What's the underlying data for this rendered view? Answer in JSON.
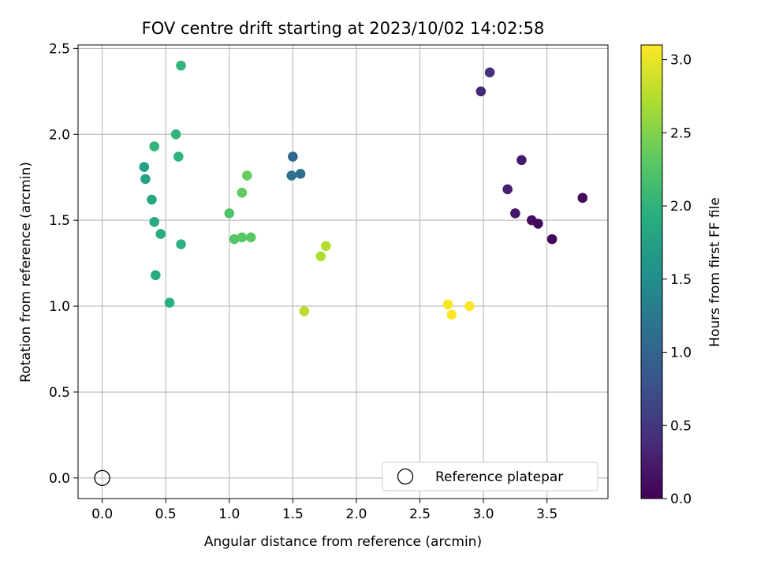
{
  "chart_data": {
    "type": "scatter",
    "title": "FOV centre drift starting at 2023/10/02 14:02:58",
    "xlabel": "Angular distance from reference (arcmin)",
    "ylabel": "Rotation from reference (arcmin)",
    "xlim": [
      -0.19,
      3.98
    ],
    "ylim": [
      -0.12,
      2.52
    ],
    "x_ticks": [
      0.0,
      0.5,
      1.0,
      1.5,
      2.0,
      2.5,
      3.0,
      3.5
    ],
    "x_tick_labels": [
      "0.0",
      "0.5",
      "1.0",
      "1.5",
      "2.0",
      "2.5",
      "3.0",
      "3.5"
    ],
    "y_ticks": [
      0.0,
      0.5,
      1.0,
      1.5,
      2.0,
      2.5
    ],
    "y_tick_labels": [
      "0.0",
      "0.5",
      "1.0",
      "1.5",
      "2.0",
      "2.5"
    ],
    "grid": true,
    "colormap": "viridis",
    "colorbar": {
      "label": "Hours from first FF file",
      "min": 0.0,
      "max": 3.1,
      "ticks": [
        0.0,
        0.5,
        1.0,
        1.5,
        2.0,
        2.5,
        3.0
      ],
      "tick_labels": [
        "0.0",
        "0.5",
        "1.0",
        "1.5",
        "2.0",
        "2.5",
        "3.0"
      ]
    },
    "legend": {
      "placement": "lower-right",
      "entries": [
        "Reference platepar"
      ]
    },
    "reference_point": {
      "x": 0.0,
      "y": 0.0,
      "label": "Reference platepar"
    },
    "points": [
      {
        "x": 3.54,
        "y": 1.39,
        "c": 0.02
      },
      {
        "x": 3.43,
        "y": 1.48,
        "c": 0.05
      },
      {
        "x": 3.78,
        "y": 1.63,
        "c": 0.08
      },
      {
        "x": 3.38,
        "y": 1.5,
        "c": 0.12
      },
      {
        "x": 3.25,
        "y": 1.54,
        "c": 0.18
      },
      {
        "x": 3.3,
        "y": 1.85,
        "c": 0.22
      },
      {
        "x": 3.19,
        "y": 1.68,
        "c": 0.28
      },
      {
        "x": 2.98,
        "y": 2.25,
        "c": 0.35
      },
      {
        "x": 3.05,
        "y": 2.36,
        "c": 0.42
      },
      {
        "x": 1.5,
        "y": 1.87,
        "c": 1.05
      },
      {
        "x": 1.56,
        "y": 1.77,
        "c": 1.1
      },
      {
        "x": 1.49,
        "y": 1.76,
        "c": 1.15
      },
      {
        "x": 0.33,
        "y": 1.81,
        "c": 1.78
      },
      {
        "x": 0.34,
        "y": 1.74,
        "c": 1.8
      },
      {
        "x": 0.39,
        "y": 1.62,
        "c": 1.85
      },
      {
        "x": 0.41,
        "y": 1.49,
        "c": 1.88
      },
      {
        "x": 0.46,
        "y": 1.42,
        "c": 1.9
      },
      {
        "x": 0.42,
        "y": 1.18,
        "c": 1.92
      },
      {
        "x": 0.53,
        "y": 1.02,
        "c": 1.95
      },
      {
        "x": 0.62,
        "y": 1.36,
        "c": 1.97
      },
      {
        "x": 0.6,
        "y": 1.87,
        "c": 1.99
      },
      {
        "x": 0.58,
        "y": 2.0,
        "c": 2.01
      },
      {
        "x": 0.41,
        "y": 1.93,
        "c": 2.02
      },
      {
        "x": 0.62,
        "y": 2.4,
        "c": 2.03
      },
      {
        "x": 1.0,
        "y": 1.54,
        "c": 2.22
      },
      {
        "x": 1.04,
        "y": 1.39,
        "c": 2.25
      },
      {
        "x": 1.1,
        "y": 1.4,
        "c": 2.28
      },
      {
        "x": 1.17,
        "y": 1.4,
        "c": 2.3
      },
      {
        "x": 1.1,
        "y": 1.66,
        "c": 2.33
      },
      {
        "x": 1.14,
        "y": 1.76,
        "c": 2.36
      },
      {
        "x": 1.72,
        "y": 1.29,
        "c": 2.72
      },
      {
        "x": 1.76,
        "y": 1.35,
        "c": 2.75
      },
      {
        "x": 1.59,
        "y": 0.97,
        "c": 2.78
      },
      {
        "x": 2.72,
        "y": 1.01,
        "c": 3.06
      },
      {
        "x": 2.89,
        "y": 1.0,
        "c": 3.08
      },
      {
        "x": 2.75,
        "y": 0.95,
        "c": 3.1
      }
    ]
  }
}
